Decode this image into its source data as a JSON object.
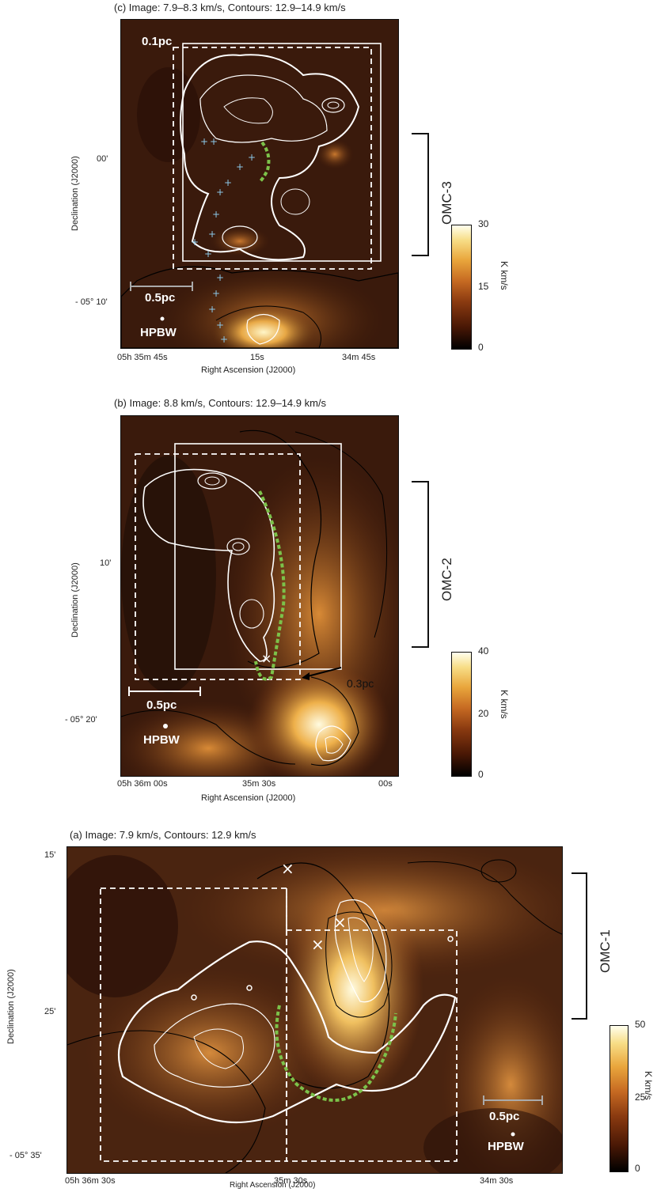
{
  "panels": {
    "c": {
      "title": "(c) Image: 7.9–8.3 km/s,  Contours: 12.9–14.9 km/s",
      "ylabel": "Declination (J2000)",
      "xlabel": "Right Ascension (J2000)",
      "yticks": [
        "00'",
        "- 05° 10'"
      ],
      "xticks": [
        "05h 35m 45s",
        "15s",
        "34m 45s"
      ],
      "scalebar_small": "0.1pc",
      "scalebar_large": "0.5pc",
      "beam": "HPBW",
      "region": "OMC-3",
      "colorbar": {
        "ticks": [
          "30",
          "15",
          "0"
        ],
        "unit": "K km/s"
      }
    },
    "b": {
      "title": "(b) Image: 8.8 km/s,  Contours: 12.9–14.9 km/s",
      "ylabel": "Declination (J2000)",
      "xlabel": "Right Ascension (J2000)",
      "yticks": [
        "10'",
        "- 05° 20'"
      ],
      "xticks": [
        "05h 36m 00s",
        "35m 30s",
        "00s"
      ],
      "arrow_label": "0.3pc",
      "scalebar_large": "0.5pc",
      "beam": "HPBW",
      "region": "OMC-2",
      "colorbar": {
        "ticks": [
          "40",
          "20",
          "0"
        ],
        "unit": "K km/s"
      }
    },
    "a": {
      "title": "(a) Image: 7.9 km/s,  Contours: 12.9 km/s",
      "ylabel": "Declination (J2000)",
      "xlabel": "Right Ascension (J2000)",
      "yticks": [
        "15'",
        "25'",
        "- 05° 35'"
      ],
      "xticks": [
        "05h 36m 30s",
        "35m 30s",
        "34m 30s"
      ],
      "scalebar_large": "0.5pc",
      "beam": "HPBW",
      "region": "OMC-1",
      "colorbar": {
        "ticks": [
          "50",
          "25",
          "0"
        ],
        "unit": "K km/s"
      }
    }
  },
  "colors": {
    "green_filament": "#7cc24a",
    "star_marker": "#8cc8e8",
    "contour_white": "#ffffff",
    "contour_black": "#000000"
  }
}
